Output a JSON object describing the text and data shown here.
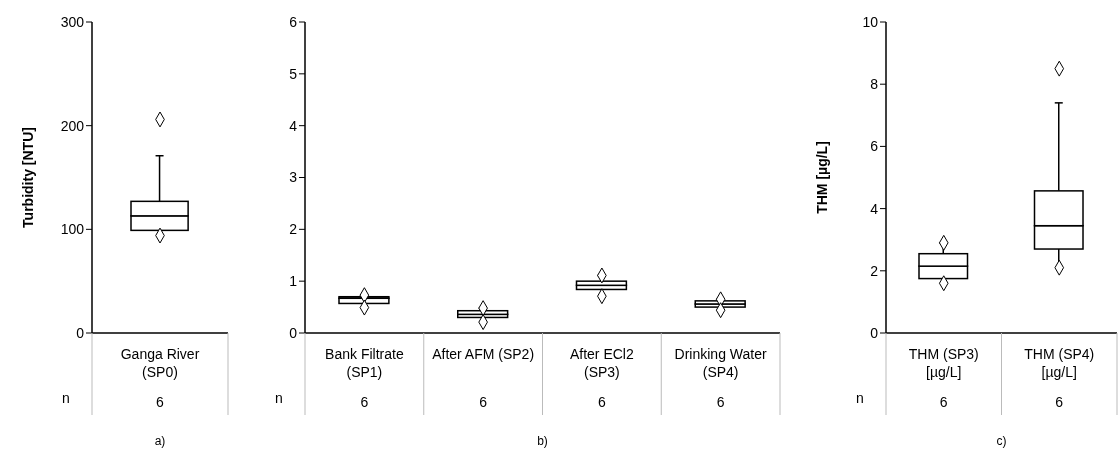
{
  "chart_data": [
    {
      "type": "box",
      "ylabel": "Turbidity [NTU]",
      "categories": [
        "Ganga River (SP0)"
      ],
      "ylim": [
        0,
        300
      ],
      "yticks": [
        0,
        100,
        200,
        300
      ],
      "marker": "diamond",
      "boxes": [
        {
          "low": 94,
          "q1": 99,
          "median": 113,
          "q3": 127,
          "high": 171,
          "outliers": [
            206,
            94
          ]
        }
      ],
      "annotations": [
        "n",
        "6",
        "a)"
      ]
    },
    {
      "type": "box",
      "categories": [
        "Bank Filtrate (SP1)",
        "After AFM (SP2)",
        "After ECl2 (SP3)",
        "Drinking Water (SP4)"
      ],
      "ylim": [
        0,
        6
      ],
      "yticks": [
        0,
        1,
        2,
        3,
        4,
        5,
        6
      ],
      "marker": "diamond",
      "boxes": [
        {
          "low": 0.49,
          "q1": 0.57,
          "median": 0.67,
          "q3": 0.7,
          "high": 0.73,
          "outliers": [
            0.73,
            0.49
          ]
        },
        {
          "low": 0.21,
          "q1": 0.3,
          "median": 0.36,
          "q3": 0.43,
          "high": 0.48,
          "outliers": [
            0.48,
            0.21
          ]
        },
        {
          "low": 0.71,
          "q1": 0.84,
          "median": 0.92,
          "q3": 1.0,
          "high": 1.11,
          "outliers": [
            1.11,
            0.71
          ]
        },
        {
          "low": 0.44,
          "q1": 0.5,
          "median": 0.56,
          "q3": 0.62,
          "high": 0.65,
          "outliers": [
            0.65,
            0.44
          ]
        }
      ],
      "annotations": [
        "n",
        "6",
        "6",
        "6",
        "6",
        "b)"
      ]
    },
    {
      "type": "box",
      "ylabel": "THM [µg/L]",
      "categories": [
        "THM (SP3) [µg/L]",
        "THM (SP4) [µg/L]"
      ],
      "ylim": [
        0,
        10
      ],
      "yticks": [
        0,
        2,
        4,
        6,
        8,
        10
      ],
      "marker": "diamond",
      "boxes": [
        {
          "low": 1.6,
          "q1": 1.75,
          "median": 2.15,
          "q3": 2.55,
          "high": 2.9,
          "outliers": [
            2.9,
            1.6
          ]
        },
        {
          "low": 2.1,
          "q1": 2.7,
          "median": 3.45,
          "q3": 4.57,
          "high": 7.4,
          "outliers": [
            8.5,
            2.1
          ]
        }
      ],
      "annotations": [
        "n",
        "6",
        "6",
        "c)"
      ]
    }
  ]
}
